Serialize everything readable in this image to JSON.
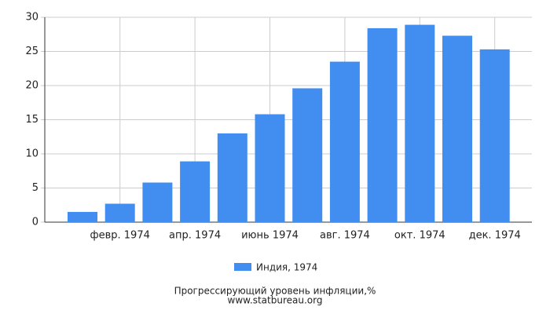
{
  "chart_data": {
    "type": "bar",
    "categories": [
      null,
      "февр. 1974",
      null,
      "апр. 1974",
      null,
      "июнь 1974",
      null,
      "авг. 1974",
      null,
      "окт. 1974",
      null,
      "дек. 1974"
    ],
    "series": [
      {
        "name": "Индия, 1974",
        "color": "#428ef0",
        "values": [
          1.5,
          2.7,
          5.8,
          8.9,
          13.0,
          15.8,
          19.6,
          23.5,
          28.4,
          28.9,
          27.3,
          25.3
        ]
      }
    ],
    "ylim": [
      0,
      30
    ],
    "yticks": [
      0,
      5,
      10,
      15,
      20,
      25,
      30
    ],
    "grid": true,
    "title": "Прогрессирующий уровень инфляции,%",
    "source": "www.statbureau.org"
  }
}
